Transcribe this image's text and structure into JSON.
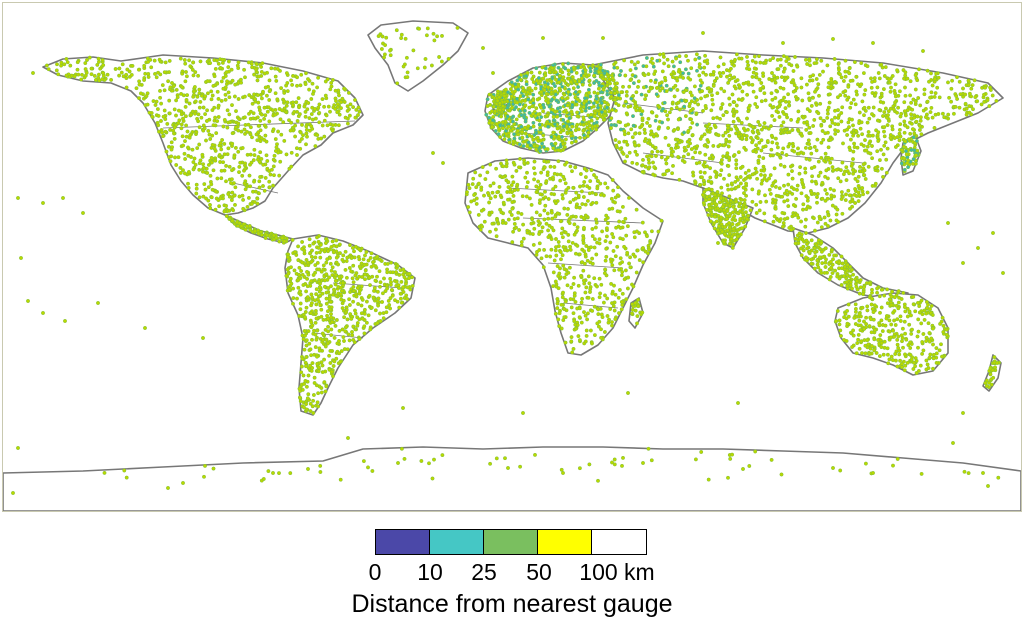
{
  "map": {
    "land_outline_color": "#777777",
    "border_color": "#777777",
    "ocean_color": "#ffffff",
    "station_marker_outer": "#b9d800",
    "station_marker_inner": "#7fbf3f",
    "dense_cluster_color": "#3fb8a8",
    "frame_color": "#c9c9b0"
  },
  "legend": {
    "title": "Distance from nearest gauge",
    "unit": "km",
    "bins": [
      {
        "color": "#4b48a8"
      },
      {
        "color": "#45c7c5"
      },
      {
        "color": "#7abf5f"
      },
      {
        "color": "#ffff00"
      },
      {
        "color": "#ffffff"
      }
    ],
    "ticks": [
      "0",
      "10",
      "25",
      "50",
      "100 km"
    ]
  }
}
